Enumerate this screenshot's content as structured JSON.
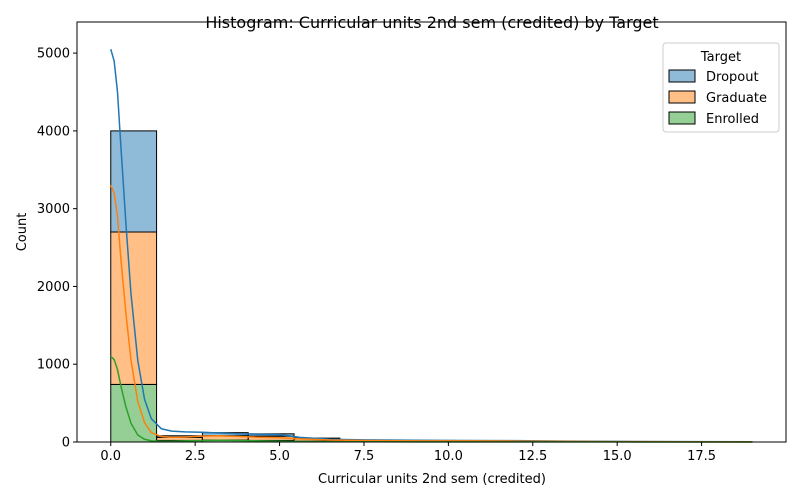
{
  "chart_data": {
    "type": "bar",
    "title": "Histogram: Curricular units 2nd sem (credited) by Target",
    "xlabel": "Curricular units 2nd sem (credited)",
    "ylabel": "Count",
    "xlim": [
      -1.0,
      20.0
    ],
    "ylim": [
      0,
      5400
    ],
    "xticks": [
      0.0,
      2.5,
      5.0,
      7.5,
      10.0,
      12.5,
      15.0,
      17.5
    ],
    "xtick_labels": [
      "0.0",
      "2.5",
      "5.0",
      "7.5",
      "10.0",
      "12.5",
      "15.0",
      "17.5"
    ],
    "yticks": [
      0,
      1000,
      2000,
      3000,
      4000,
      5000
    ],
    "ytick_labels": [
      "0",
      "1000",
      "2000",
      "3000",
      "4000",
      "5000"
    ],
    "stacked": true,
    "bin_edges": [
      0.0,
      1.357,
      2.714,
      4.071,
      5.429,
      6.786,
      8.143,
      9.5,
      10.857,
      12.214,
      13.571,
      14.929,
      16.286,
      17.643,
      19.0
    ],
    "series": [
      {
        "name": "Enrolled",
        "color": "#2ca02c",
        "values": [
          740,
          20,
          25,
          20,
          10,
          5,
          3,
          2,
          4,
          2,
          1,
          1,
          0,
          0
        ]
      },
      {
        "name": "Graduate",
        "color": "#ff7f0e",
        "values": [
          1960,
          40,
          55,
          55,
          30,
          12,
          8,
          8,
          10,
          6,
          3,
          2,
          2,
          2
        ]
      },
      {
        "name": "Dropout",
        "color": "#1f77b4",
        "values": [
          1300,
          20,
          40,
          30,
          10,
          4,
          3,
          3,
          5,
          2,
          1,
          1,
          1,
          0
        ]
      }
    ],
    "kde": {
      "x": [
        0.0,
        0.1,
        0.2,
        0.3,
        0.45,
        0.6,
        0.8,
        1.0,
        1.2,
        1.5,
        1.8,
        2.2,
        2.7,
        3.2,
        3.8,
        4.4,
        5.0,
        5.6,
        6.5,
        7.5,
        9.0,
        10.5,
        12.0,
        13.5,
        15.0,
        17.0,
        19.0
      ],
      "series": [
        {
          "name": "Dropout",
          "color": "#1f77b4",
          "values": [
            5050,
            4900,
            4500,
            3800,
            2800,
            1900,
            1050,
            550,
            300,
            170,
            140,
            130,
            125,
            115,
            105,
            100,
            95,
            60,
            35,
            28,
            22,
            20,
            18,
            12,
            8,
            5,
            3
          ]
        },
        {
          "name": "Graduate",
          "color": "#ff7f0e",
          "values": [
            3300,
            3200,
            2900,
            2350,
            1650,
            1050,
            520,
            250,
            120,
            70,
            60,
            65,
            75,
            80,
            70,
            60,
            55,
            40,
            25,
            20,
            15,
            14,
            12,
            8,
            5,
            3,
            2
          ]
        },
        {
          "name": "Enrolled",
          "color": "#2ca02c",
          "values": [
            1100,
            1060,
            930,
            720,
            450,
            240,
            90,
            35,
            15,
            10,
            10,
            15,
            20,
            22,
            20,
            15,
            10,
            6,
            4,
            3,
            2,
            2,
            2,
            1,
            1,
            0,
            0
          ]
        }
      ]
    },
    "legend": {
      "title": "Target",
      "placement": "top-right",
      "entries": [
        {
          "label": "Dropout",
          "color": "#1f77b4"
        },
        {
          "label": "Graduate",
          "color": "#ff7f0e"
        },
        {
          "label": "Enrolled",
          "color": "#2ca02c"
        }
      ]
    },
    "grid": false
  }
}
